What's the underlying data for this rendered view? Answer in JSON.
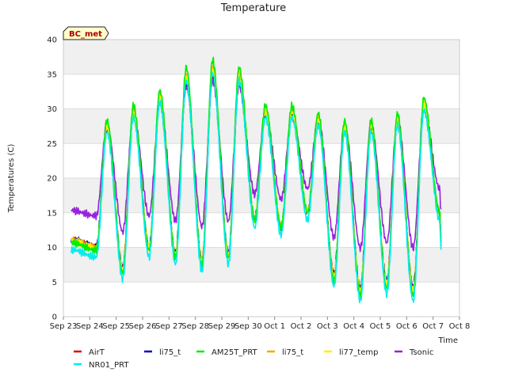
{
  "chart_data": {
    "type": "line",
    "title": "Temperature",
    "xlabel": "Time",
    "ylabel": "Temperatures (C)",
    "badge": "BC_met",
    "ylim": [
      0,
      40
    ],
    "yticks": [
      0,
      5,
      10,
      15,
      20,
      25,
      30,
      35,
      40
    ],
    "xlim": [
      0,
      15
    ],
    "x_tick_labels": [
      "Sep 23",
      "Sep 24",
      "Sep 25",
      "Sep 26",
      "Sep 27",
      "Sep 28",
      "Sep 29",
      "Sep 30",
      "Oct 1",
      "Oct 2",
      "Oct 3",
      "Oct 4",
      "Oct 5",
      "Oct 6",
      "Oct 7",
      "Oct 8"
    ],
    "grid": true,
    "band_shading": true,
    "legend_placement": "bottom",
    "x_units": "days since Sep 23 00:00",
    "series": [
      {
        "name": "AirT",
        "color": "#dd0000"
      },
      {
        "name": "NR01_PRT",
        "color": "#00eeee"
      },
      {
        "name": "li75_t",
        "color": "#0000cc"
      },
      {
        "name": "AM25T_PRT",
        "color": "#00ee00"
      },
      {
        "name": "li75_t",
        "color": "#ffa500"
      },
      {
        "name": "li77_temp",
        "color": "#ffee00"
      },
      {
        "name": "Tsonic",
        "color": "#9922dd"
      }
    ],
    "daily_extrema": {
      "x_max": [
        1.65,
        2.65,
        3.65,
        4.65,
        5.65,
        6.65,
        7.65,
        8.65,
        9.65,
        10.65,
        11.65,
        12.65,
        13.65,
        14.65
      ],
      "air_max": [
        27,
        29,
        31,
        34,
        35,
        34,
        29,
        29,
        28,
        27,
        27,
        28,
        30,
        32
      ],
      "x_min": [
        1.25,
        2.25,
        3.25,
        4.25,
        5.25,
        6.25,
        7.25,
        8.25,
        9.25,
        10.25,
        11.25,
        12.25,
        13.25,
        14.25
      ],
      "air_min": [
        10,
        7,
        10,
        9,
        8,
        9,
        14,
        13,
        15,
        6,
        4,
        5,
        4,
        15
      ],
      "start": [
        0.3,
        11
      ],
      "end": [
        14.3,
        11
      ]
    }
  }
}
